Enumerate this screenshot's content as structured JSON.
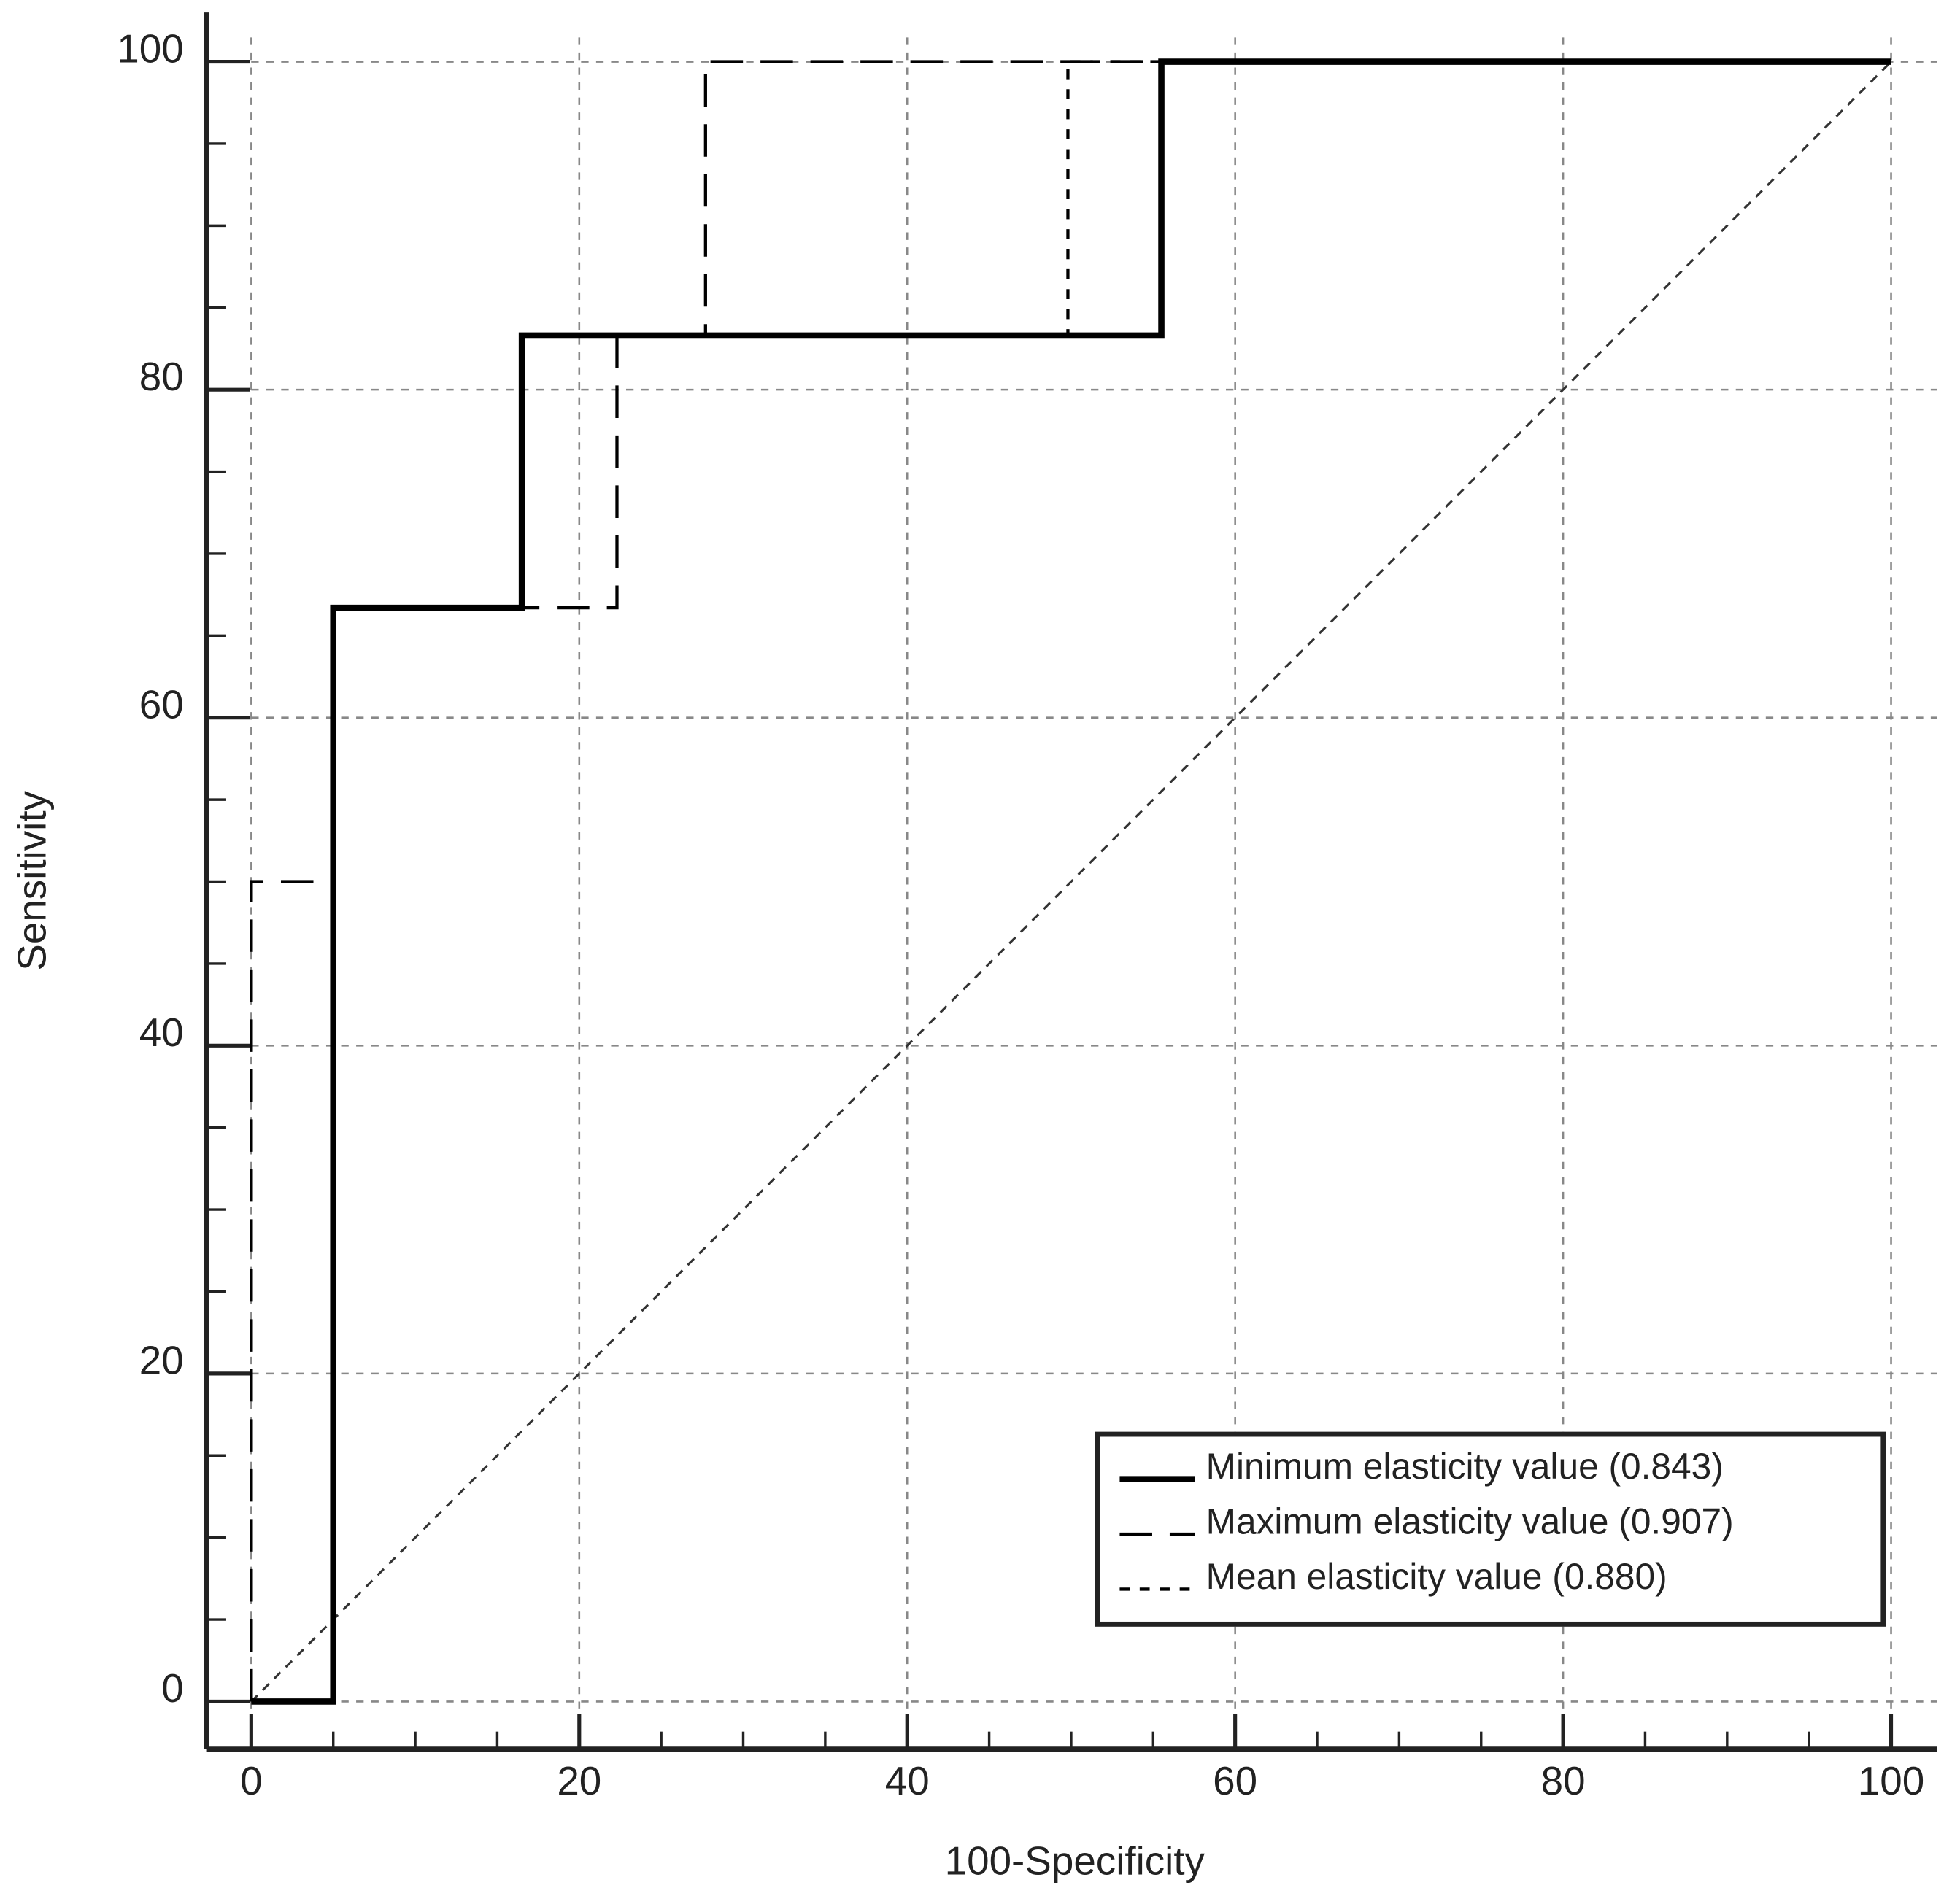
{
  "chart_data": {
    "type": "line",
    "x_label": "100-Specificity",
    "y_label": "Sensitivity",
    "xlim": [
      -2.75,
      102.8
    ],
    "ylim": [
      -2.9,
      103
    ],
    "xticks": [
      0,
      20,
      40,
      60,
      80,
      100
    ],
    "yticks": [
      0,
      20,
      40,
      60,
      80,
      100
    ],
    "xminorticks": [
      5,
      10,
      15,
      25,
      30,
      35,
      45,
      50,
      55,
      65,
      70,
      75,
      85,
      90,
      95
    ],
    "yminorticks": [
      5,
      10,
      15,
      25,
      30,
      35,
      45,
      50,
      55,
      65,
      70,
      75,
      85,
      90,
      95
    ],
    "grid": true,
    "diagonal": true,
    "legend": "lower right",
    "series": [
      {
        "name": "Minimum elasticity value (0.843)",
        "color": "#000000",
        "style": "solid",
        "x": [
          0,
          5,
          5,
          16.5,
          16.5,
          55.5,
          55.5,
          100
        ],
        "values": [
          0,
          0,
          66.7,
          66.7,
          83.3,
          83.3,
          100,
          100
        ]
      },
      {
        "name": "Maximum elasticity value (0.907)",
        "color": "#000000",
        "style": "long-dash",
        "x": [
          0,
          0,
          5,
          5,
          22.3,
          22.3,
          27.7,
          27.7,
          100
        ],
        "values": [
          0,
          50,
          50,
          66.7,
          66.7,
          83.3,
          83.3,
          100,
          100
        ]
      },
      {
        "name": "Mean elasticity value (0.880)",
        "color": "#000000",
        "style": "short-dash",
        "x": [
          0,
          5,
          5,
          16.5,
          16.5,
          49.8,
          49.8,
          100
        ],
        "values": [
          0,
          0,
          66.7,
          66.7,
          83.3,
          83.3,
          100,
          100
        ]
      }
    ]
  }
}
